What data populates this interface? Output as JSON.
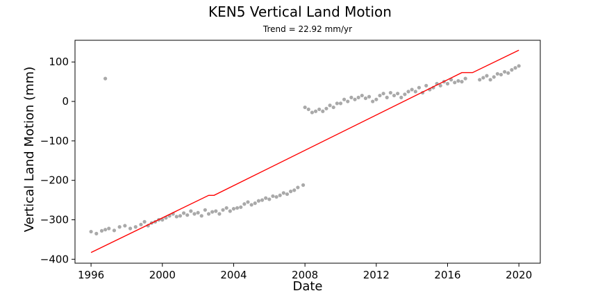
{
  "chart_data": {
    "type": "scatter",
    "title": "KEN5 Vertical Land Motion",
    "subtitle": "Trend = 22.92 mm/yr",
    "xlabel": "Date",
    "ylabel": "Vertical Land Motion (mm)",
    "xlim": [
      1995.1,
      2021.2
    ],
    "ylim": [
      -410,
      155
    ],
    "x_ticks": [
      1996,
      2000,
      2004,
      2008,
      2012,
      2016,
      2020
    ],
    "y_ticks": [
      -400,
      -300,
      -200,
      -100,
      0,
      100
    ],
    "colors": {
      "observations": "#a9a9a9",
      "trend": "#ff0000",
      "axes": "#000000"
    },
    "grid": false,
    "legend": "none",
    "series": [
      {
        "type": "scatter",
        "x": [
          1996.0,
          1996.3,
          1996.6,
          1996.8,
          1997.0,
          1997.3,
          1997.6,
          1997.9,
          1998.2,
          1998.5,
          1998.8,
          1999.0,
          1999.2,
          1999.4,
          1999.6,
          1999.8,
          2000.0,
          2000.2,
          2000.4,
          2000.6,
          2000.8,
          2001.0,
          2001.2,
          2001.4,
          2001.6,
          2001.8,
          2002.0,
          2002.2,
          2002.4,
          2002.6,
          2002.8,
          2003.0,
          2003.2,
          2003.4,
          2003.6,
          2003.8,
          2004.0,
          2004.2,
          2004.4,
          2004.6,
          2004.8,
          2005.0,
          2005.2,
          2005.4,
          2005.6,
          2005.8,
          2006.0,
          2006.2,
          2006.4,
          2006.6,
          2006.8,
          2007.0,
          2007.2,
          2007.4,
          2007.6,
          2007.9,
          2008.0,
          2008.2,
          2008.4,
          2008.6,
          2008.8,
          2009.0,
          2009.2,
          2009.4,
          2009.6,
          2009.8,
          2010.0,
          2010.2,
          2010.4,
          2010.6,
          2010.8,
          2011.0,
          2011.2,
          2011.4,
          2011.6,
          2011.8,
          2012.0,
          2012.2,
          2012.4,
          2012.6,
          2012.8,
          2013.0,
          2013.2,
          2013.4,
          2013.6,
          2013.8,
          2014.0,
          2014.2,
          2014.4,
          2014.6,
          2014.8,
          2015.0,
          2015.2,
          2015.4,
          2015.6,
          2015.8,
          2016.0,
          2016.2,
          2016.4,
          2016.6,
          2016.8,
          2017.0,
          2017.8,
          2018.0,
          2018.2,
          2018.4,
          2018.6,
          2018.8,
          2019.0,
          2019.2,
          2019.4,
          2019.6,
          2019.8,
          2020.0,
          1996.8
        ],
        "y": [
          -330,
          -335,
          -328,
          -325,
          -322,
          -327,
          -318,
          -315,
          -322,
          -318,
          -312,
          -305,
          -315,
          -308,
          -305,
          -300,
          -300,
          -295,
          -290,
          -285,
          -292,
          -290,
          -283,
          -288,
          -278,
          -285,
          -282,
          -290,
          -275,
          -285,
          -280,
          -278,
          -285,
          -275,
          -270,
          -278,
          -272,
          -270,
          -268,
          -260,
          -255,
          -262,
          -258,
          -252,
          -250,
          -245,
          -248,
          -240,
          -242,
          -238,
          -232,
          -235,
          -228,
          -225,
          -218,
          -212,
          -15,
          -20,
          -28,
          -25,
          -20,
          -25,
          -18,
          -10,
          -15,
          -5,
          -5,
          5,
          0,
          10,
          5,
          10,
          15,
          8,
          12,
          0,
          5,
          15,
          20,
          10,
          22,
          15,
          20,
          10,
          18,
          25,
          30,
          25,
          35,
          22,
          40,
          30,
          35,
          45,
          40,
          50,
          45,
          55,
          48,
          52,
          50,
          58,
          55,
          60,
          65,
          55,
          62,
          70,
          68,
          75,
          72,
          80,
          85,
          90,
          58
        ]
      },
      {
        "type": "line",
        "x": [
          1996.0,
          2002.6,
          2002.9,
          2016.8,
          2017.4,
          2020.0
        ],
        "y": [
          -383,
          -238,
          -238,
          73,
          73,
          130
        ]
      }
    ]
  }
}
